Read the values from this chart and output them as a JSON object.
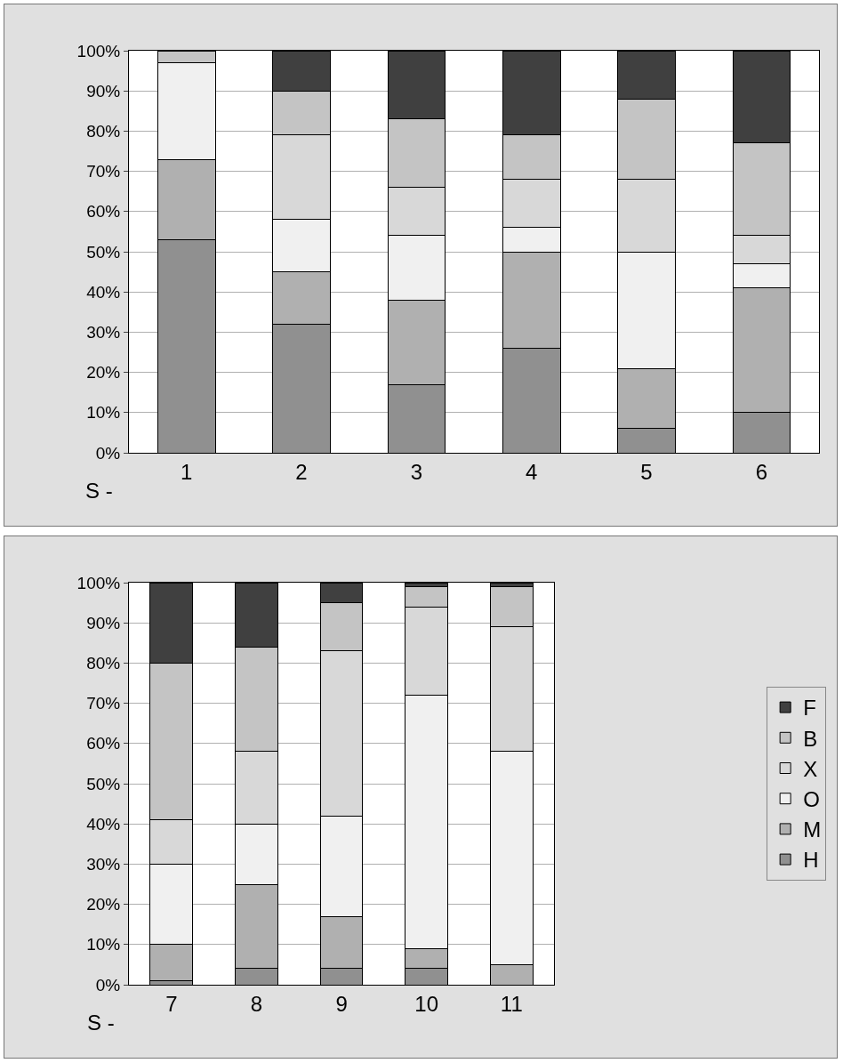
{
  "chart_data": [
    {
      "type": "bar",
      "stacked": true,
      "xlabel": "S -",
      "categories": [
        "1",
        "2",
        "3",
        "4",
        "5",
        "6"
      ],
      "ylim": [
        0,
        100
      ],
      "yticks": [
        {
          "value": 0,
          "label": "0%"
        },
        {
          "value": 10,
          "label": "10%"
        },
        {
          "value": 20,
          "label": "20%"
        },
        {
          "value": 30,
          "label": "30%"
        },
        {
          "value": 40,
          "label": "40%"
        },
        {
          "value": 50,
          "label": "50%"
        },
        {
          "value": 60,
          "label": "60%"
        },
        {
          "value": 70,
          "label": "70%"
        },
        {
          "value": 80,
          "label": "80%"
        },
        {
          "value": 90,
          "label": "90%"
        },
        {
          "value": 100,
          "label": "100%"
        }
      ],
      "grid": "y",
      "legend": false,
      "series": [
        {
          "color": "#909090",
          "values": [
            53,
            32,
            17,
            26,
            6,
            10
          ]
        },
        {
          "color": "#b0b0b0",
          "values": [
            20,
            13,
            21,
            24,
            15,
            31
          ]
        },
        {
          "color": "#f0f0f0",
          "values": [
            24,
            13,
            16,
            6,
            29,
            6
          ]
        },
        {
          "color": "#d8d8d8",
          "values": [
            null,
            21,
            12,
            12,
            18,
            7
          ]
        },
        {
          "color": "#c4c4c4",
          "values": [
            3,
            11,
            17,
            11,
            20,
            23
          ]
        },
        {
          "color": "#404040",
          "values": [
            null,
            10,
            17,
            21,
            12,
            23
          ]
        }
      ]
    },
    {
      "type": "bar",
      "stacked": true,
      "xlabel": "S -",
      "categories": [
        "7",
        "8",
        "9",
        "10",
        "11"
      ],
      "ylim": [
        0,
        100
      ],
      "yticks": [
        {
          "value": 0,
          "label": "0%"
        },
        {
          "value": 10,
          "label": "10%"
        },
        {
          "value": 20,
          "label": "20%"
        },
        {
          "value": 30,
          "label": "30%"
        },
        {
          "value": 40,
          "label": "40%"
        },
        {
          "value": 50,
          "label": "50%"
        },
        {
          "value": 60,
          "label": "60%"
        },
        {
          "value": 70,
          "label": "70%"
        },
        {
          "value": 80,
          "label": "80%"
        },
        {
          "value": 90,
          "label": "90%"
        },
        {
          "value": 100,
          "label": "100%"
        }
      ],
      "grid": "y",
      "legend": "right",
      "series": [
        {
          "name": "H",
          "color": "#909090",
          "values": [
            1,
            4,
            4,
            4,
            null
          ]
        },
        {
          "name": "M",
          "color": "#b0b0b0",
          "values": [
            9,
            21,
            13,
            5,
            5
          ]
        },
        {
          "name": "O",
          "color": "#f0f0f0",
          "values": [
            20,
            15,
            25,
            63,
            53
          ]
        },
        {
          "name": "X",
          "color": "#d8d8d8",
          "values": [
            11,
            18,
            41,
            22,
            31
          ]
        },
        {
          "name": "B",
          "color": "#c4c4c4",
          "values": [
            39,
            26,
            12,
            5,
            10
          ]
        },
        {
          "name": "F",
          "color": "#404040",
          "values": [
            20,
            16,
            5,
            1,
            1
          ]
        }
      ]
    }
  ]
}
